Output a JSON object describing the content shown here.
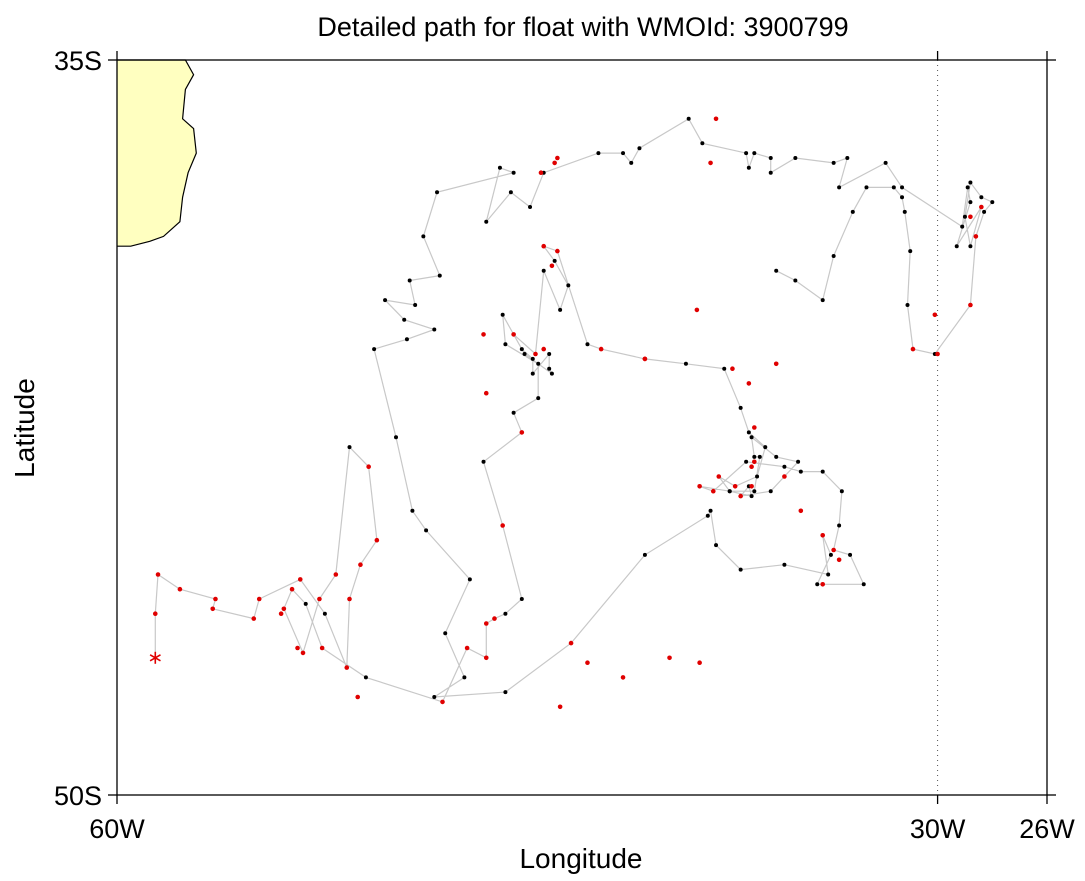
{
  "title": "Detailed path for float with WMOId: 3900799",
  "xlabel": "Longitude",
  "ylabel": "Latitude",
  "chart_data": {
    "type": "scatter",
    "title": "Detailed path for float with WMOId: 3900799",
    "xlabel": "Longitude",
    "ylabel": "Latitude",
    "xlim": [
      -60,
      -26
    ],
    "ylim": [
      -50,
      -35
    ],
    "x_ticks": [
      {
        "value": -60,
        "label": "60W"
      },
      {
        "value": -30,
        "label": "30W"
      },
      {
        "value": -26,
        "label": "26W"
      }
    ],
    "y_ticks": [
      {
        "value": -35,
        "label": "35S"
      },
      {
        "value": -50,
        "label": "50S"
      }
    ],
    "reference_line": {
      "lon": -30,
      "style": "dotted"
    },
    "colors": {
      "land": "#ffffc0",
      "coast": "#000000",
      "track": "#c8c8c8",
      "red": "#e00000",
      "black": "#000000",
      "frame": "#000000"
    },
    "land_outline": [
      [
        -60.0,
        -35.0
      ],
      [
        -57.5,
        -35.0
      ],
      [
        -57.2,
        -35.3
      ],
      [
        -57.5,
        -35.6
      ],
      [
        -57.6,
        -36.2
      ],
      [
        -57.2,
        -36.4
      ],
      [
        -57.1,
        -36.9
      ],
      [
        -57.4,
        -37.3
      ],
      [
        -57.6,
        -37.8
      ],
      [
        -57.7,
        -38.3
      ],
      [
        -58.3,
        -38.6
      ],
      [
        -58.8,
        -38.7
      ],
      [
        -59.5,
        -38.8
      ],
      [
        -60.0,
        -38.8
      ]
    ],
    "track": [
      [
        -58.6,
        -47.2
      ],
      [
        -58.6,
        -46.3
      ],
      [
        -58.5,
        -45.5
      ],
      [
        -57.7,
        -45.8
      ],
      [
        -56.4,
        -46.0
      ],
      [
        -56.5,
        -46.2
      ],
      [
        -55.0,
        -46.4
      ],
      [
        -54.8,
        -46.0
      ],
      [
        -53.3,
        -45.6
      ],
      [
        -52.4,
        -46.3
      ],
      [
        -51.6,
        -47.4
      ],
      [
        -51.5,
        -46.0
      ],
      [
        -51.1,
        -45.3
      ],
      [
        -50.5,
        -44.8
      ],
      [
        -50.8,
        -43.3
      ],
      [
        -51.5,
        -42.9
      ],
      [
        -52.0,
        -45.5
      ],
      [
        -52.6,
        -46.0
      ],
      [
        -53.2,
        -47.1
      ],
      [
        -53.9,
        -46.2
      ],
      [
        -53.6,
        -45.8
      ],
      [
        -53.1,
        -46.1
      ],
      [
        -52.5,
        -47.0
      ],
      [
        -50.9,
        -47.6
      ],
      [
        -48.1,
        -48.1
      ],
      [
        -47.2,
        -47.0
      ],
      [
        -46.5,
        -47.2
      ],
      [
        -46.5,
        -46.5
      ],
      [
        -46.2,
        -46.4
      ],
      [
        -45.8,
        -46.3
      ],
      [
        -45.2,
        -46.0
      ],
      [
        -45.9,
        -44.5
      ],
      [
        -46.6,
        -43.2
      ],
      [
        -45.2,
        -42.6
      ],
      [
        -45.5,
        -42.2
      ],
      [
        -44.6,
        -41.9
      ],
      [
        -44.6,
        -41.2
      ],
      [
        -45.8,
        -40.8
      ],
      [
        -45.9,
        -40.2
      ],
      [
        -45.2,
        -40.9
      ],
      [
        -44.8,
        -41.1
      ],
      [
        -44.8,
        -41.4
      ],
      [
        -44.2,
        -41.0
      ],
      [
        -44.2,
        -41.3
      ],
      [
        -44.1,
        -41.4
      ],
      [
        -45.1,
        -41.0
      ],
      [
        -45.5,
        -40.6
      ],
      [
        -44.7,
        -41.0
      ],
      [
        -44.4,
        -39.3
      ],
      [
        -43.8,
        -40.1
      ],
      [
        -43.5,
        -39.6
      ],
      [
        -44.0,
        -39.1
      ],
      [
        -44.4,
        -38.8
      ],
      [
        -43.9,
        -38.9
      ],
      [
        -42.8,
        -40.8
      ],
      [
        -42.3,
        -40.9
      ],
      [
        -40.7,
        -41.1
      ],
      [
        -39.2,
        -41.2
      ],
      [
        -37.8,
        -41.3
      ],
      [
        -37.2,
        -42.1
      ],
      [
        -36.9,
        -42.6
      ],
      [
        -36.3,
        -42.9
      ],
      [
        -36.6,
        -43.5
      ],
      [
        -37.4,
        -43.7
      ],
      [
        -38.0,
        -43.5
      ],
      [
        -37.6,
        -43.8
      ],
      [
        -36.8,
        -43.9
      ],
      [
        -36.9,
        -43.7
      ],
      [
        -37.2,
        -43.9
      ],
      [
        -36.1,
        -43.8
      ],
      [
        -35.6,
        -43.5
      ],
      [
        -35.1,
        -43.2
      ],
      [
        -35.9,
        -43.1
      ],
      [
        -36.8,
        -42.7
      ],
      [
        -36.7,
        -43.1
      ],
      [
        -36.5,
        -43.1
      ],
      [
        -36.7,
        -43.8
      ],
      [
        -37.6,
        -43.8
      ],
      [
        -38.7,
        -43.7
      ],
      [
        -38.2,
        -43.8
      ],
      [
        -37.0,
        -43.2
      ],
      [
        -35.6,
        -43.3
      ],
      [
        -35.0,
        -43.4
      ],
      [
        -34.2,
        -43.4
      ],
      [
        -33.5,
        -43.8
      ],
      [
        -33.6,
        -44.5
      ],
      [
        -33.8,
        -45.0
      ],
      [
        -33.2,
        -45.1
      ],
      [
        -32.7,
        -45.7
      ],
      [
        -34.4,
        -45.7
      ],
      [
        -33.9,
        -45.1
      ],
      [
        -34.2,
        -44.7
      ],
      [
        -34.0,
        -45.5
      ],
      [
        -35.6,
        -45.3
      ],
      [
        -37.2,
        -45.4
      ],
      [
        -38.1,
        -44.9
      ],
      [
        -38.3,
        -44.2
      ],
      [
        -38.4,
        -44.3
      ],
      [
        -40.7,
        -45.1
      ],
      [
        -43.4,
        -46.9
      ],
      [
        -45.8,
        -47.9
      ],
      [
        -48.4,
        -48.0
      ],
      [
        -47.3,
        -47.6
      ],
      [
        -48.0,
        -46.7
      ],
      [
        -47.1,
        -45.6
      ],
      [
        -48.7,
        -44.6
      ],
      [
        -49.2,
        -44.2
      ],
      [
        -49.8,
        -42.7
      ],
      [
        -50.6,
        -40.9
      ],
      [
        -49.4,
        -40.7
      ],
      [
        -48.4,
        -40.5
      ],
      [
        -49.5,
        -40.3
      ],
      [
        -50.2,
        -39.9
      ],
      [
        -49.1,
        -40.0
      ],
      [
        -49.3,
        -39.5
      ],
      [
        -48.2,
        -39.4
      ],
      [
        -48.8,
        -38.6
      ],
      [
        -48.3,
        -37.7
      ],
      [
        -45.5,
        -37.3
      ],
      [
        -46.0,
        -37.2
      ],
      [
        -46.5,
        -38.3
      ],
      [
        -45.6,
        -37.7
      ],
      [
        -44.9,
        -38.0
      ],
      [
        -44.4,
        -37.3
      ],
      [
        -42.4,
        -36.9
      ],
      [
        -41.5,
        -36.9
      ],
      [
        -41.2,
        -37.1
      ],
      [
        -40.9,
        -36.8
      ],
      [
        -39.1,
        -36.2
      ],
      [
        -38.6,
        -36.7
      ],
      [
        -37.0,
        -36.9
      ],
      [
        -36.9,
        -37.2
      ],
      [
        -36.7,
        -36.9
      ],
      [
        -36.1,
        -37.0
      ],
      [
        -36.1,
        -37.3
      ],
      [
        -35.2,
        -37.0
      ],
      [
        -33.8,
        -37.1
      ],
      [
        -33.3,
        -37.0
      ],
      [
        -33.6,
        -37.6
      ],
      [
        -31.9,
        -37.1
      ],
      [
        -31.3,
        -37.6
      ],
      [
        -29.1,
        -38.4
      ],
      [
        -28.9,
        -37.6
      ],
      [
        -28.8,
        -37.9
      ],
      [
        -29.3,
        -38.8
      ],
      [
        -28.4,
        -38.0
      ],
      [
        -28.8,
        -38.8
      ],
      [
        -29.0,
        -38.2
      ],
      [
        -28.8,
        -37.5
      ],
      [
        -28.4,
        -37.8
      ],
      [
        -28.0,
        -37.9
      ],
      [
        -28.3,
        -38.1
      ],
      [
        -28.6,
        -38.6
      ],
      [
        -28.8,
        -40.0
      ],
      [
        -30.1,
        -41.0
      ],
      [
        -30.9,
        -40.9
      ],
      [
        -31.1,
        -40.0
      ],
      [
        -31.0,
        -38.9
      ],
      [
        -31.2,
        -38.1
      ],
      [
        -31.3,
        -37.8
      ],
      [
        -31.6,
        -37.6
      ],
      [
        -32.6,
        -37.6
      ],
      [
        -33.1,
        -38.1
      ],
      [
        -33.8,
        -39.0
      ],
      [
        -34.2,
        -39.9
      ],
      [
        -35.2,
        -39.5
      ],
      [
        -35.9,
        -39.3
      ]
    ],
    "red_points": [
      [
        -58.6,
        -46.3
      ],
      [
        -58.5,
        -45.5
      ],
      [
        -57.7,
        -45.8
      ],
      [
        -56.4,
        -46.0
      ],
      [
        -56.5,
        -46.2
      ],
      [
        -55.0,
        -46.4
      ],
      [
        -54.8,
        -46.0
      ],
      [
        -54.0,
        -46.3
      ],
      [
        -53.3,
        -45.6
      ],
      [
        -52.5,
        -47.0
      ],
      [
        -51.6,
        -47.4
      ],
      [
        -51.5,
        -46.0
      ],
      [
        -51.1,
        -45.3
      ],
      [
        -50.5,
        -44.8
      ],
      [
        -50.8,
        -43.3
      ],
      [
        -53.6,
        -45.8
      ],
      [
        -53.2,
        -47.1
      ],
      [
        -53.4,
        -47.0
      ],
      [
        -53.9,
        -46.2
      ],
      [
        -52.6,
        -46.0
      ],
      [
        -52.0,
        -45.5
      ],
      [
        -51.2,
        -48.0
      ],
      [
        -48.1,
        -48.1
      ],
      [
        -47.2,
        -47.0
      ],
      [
        -46.5,
        -47.2
      ],
      [
        -46.5,
        -46.5
      ],
      [
        -46.2,
        -46.4
      ],
      [
        -45.9,
        -44.5
      ],
      [
        -45.2,
        -42.6
      ],
      [
        -43.4,
        -46.9
      ],
      [
        -43.8,
        -48.2
      ],
      [
        -42.8,
        -47.3
      ],
      [
        -41.5,
        -47.6
      ],
      [
        -39.8,
        -47.2
      ],
      [
        -38.7,
        -47.3
      ],
      [
        -36.8,
        -43.7
      ],
      [
        -35.6,
        -43.5
      ],
      [
        -35.0,
        -44.2
      ],
      [
        -34.2,
        -45.7
      ],
      [
        -33.6,
        -45.2
      ],
      [
        -33.8,
        -45.0
      ],
      [
        -34.2,
        -44.7
      ],
      [
        -38.0,
        -43.5
      ],
      [
        -37.4,
        -43.7
      ],
      [
        -37.2,
        -43.9
      ],
      [
        -38.7,
        -43.7
      ],
      [
        -38.2,
        -43.8
      ],
      [
        -36.8,
        -43.3
      ],
      [
        -36.7,
        -42.5
      ],
      [
        -36.7,
        -43.2
      ],
      [
        -36.9,
        -41.6
      ],
      [
        -35.9,
        -41.2
      ],
      [
        -37.5,
        -41.3
      ],
      [
        -38.8,
        -40.1
      ],
      [
        -40.7,
        -41.1
      ],
      [
        -42.3,
        -40.9
      ],
      [
        -44.4,
        -40.9
      ],
      [
        -44.7,
        -41.0
      ],
      [
        -45.5,
        -40.6
      ],
      [
        -46.5,
        -41.8
      ],
      [
        -46.6,
        -40.6
      ],
      [
        -44.1,
        -39.2
      ],
      [
        -44.4,
        -38.8
      ],
      [
        -43.9,
        -38.9
      ],
      [
        -44.5,
        -37.3
      ],
      [
        -43.9,
        -37.0
      ],
      [
        -44.0,
        -37.1
      ],
      [
        -38.3,
        -37.1
      ],
      [
        -38.1,
        -36.2
      ],
      [
        -40.7,
        -41.1
      ],
      [
        -30.0,
        -41.0
      ],
      [
        -30.1,
        -40.2
      ],
      [
        -30.9,
        -40.9
      ],
      [
        -28.8,
        -40.0
      ],
      [
        -28.6,
        -38.6
      ],
      [
        -28.8,
        -38.2
      ],
      [
        -28.4,
        -38.0
      ]
    ],
    "start_marker": [
      -58.6,
      -47.2
    ]
  }
}
